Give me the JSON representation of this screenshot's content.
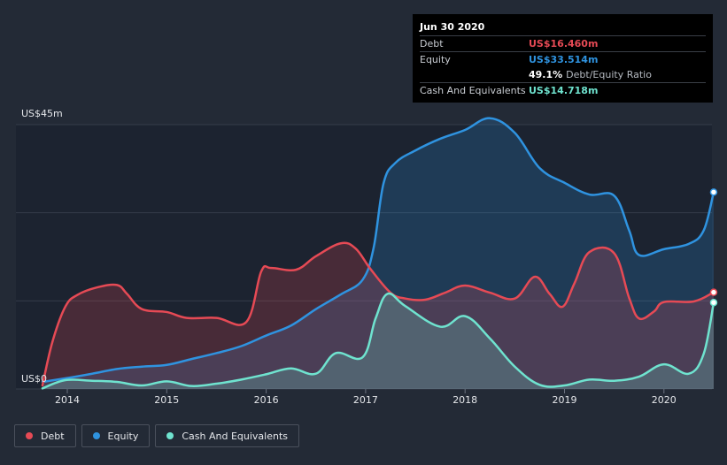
{
  "tooltip": {
    "date": "Jun 30 2020",
    "debt_label": "Debt",
    "debt_value": "US$16.460m",
    "equity_label": "Equity",
    "equity_value": "US$33.514m",
    "ratio_value": "49.1%",
    "ratio_label": "Debt/Equity Ratio",
    "cash_label": "Cash And Equivalents",
    "cash_value": "US$14.718m"
  },
  "legend": [
    {
      "label": "Debt",
      "color": "#e64a55"
    },
    {
      "label": "Equity",
      "color": "#2f93e0"
    },
    {
      "label": "Cash And Equivalents",
      "color": "#6fe3cf"
    }
  ],
  "chart_data": {
    "type": "area",
    "y_top_label": "US$45m",
    "y_bottom_label": "US$0",
    "ylim": [
      0,
      45
    ],
    "xlim": [
      2013.7,
      2020.5
    ],
    "x_ticks": [
      2014,
      2015,
      2016,
      2017,
      2018,
      2019,
      2020
    ],
    "x_tick_labels": [
      "2014",
      "2015",
      "2016",
      "2017",
      "2018",
      "2019",
      "2020"
    ],
    "grid": true,
    "series": [
      {
        "name": "Debt",
        "color": "#e64a55",
        "points": [
          [
            2013.75,
            0.6
          ],
          [
            2013.85,
            8
          ],
          [
            2013.98,
            14
          ],
          [
            2014.1,
            16
          ],
          [
            2014.3,
            17.3
          ],
          [
            2014.5,
            17.7
          ],
          [
            2014.6,
            16.2
          ],
          [
            2014.75,
            13.6
          ],
          [
            2015.0,
            13.1
          ],
          [
            2015.2,
            12.1
          ],
          [
            2015.5,
            12.1
          ],
          [
            2015.8,
            11.4
          ],
          [
            2015.95,
            20
          ],
          [
            2016.05,
            20.6
          ],
          [
            2016.3,
            20.3
          ],
          [
            2016.5,
            22.6
          ],
          [
            2016.75,
            24.8
          ],
          [
            2016.9,
            23.9
          ],
          [
            2017.05,
            20.4
          ],
          [
            2017.25,
            16.4
          ],
          [
            2017.4,
            15.4
          ],
          [
            2017.6,
            15.2
          ],
          [
            2017.8,
            16.4
          ],
          [
            2018.0,
            17.6
          ],
          [
            2018.25,
            16.4
          ],
          [
            2018.5,
            15.4
          ],
          [
            2018.7,
            19.1
          ],
          [
            2018.85,
            16.2
          ],
          [
            2018.98,
            14
          ],
          [
            2019.1,
            18
          ],
          [
            2019.25,
            23.3
          ],
          [
            2019.5,
            23.1
          ],
          [
            2019.65,
            15.5
          ],
          [
            2019.75,
            12
          ],
          [
            2019.9,
            13.2
          ],
          [
            2020.0,
            14.8
          ],
          [
            2020.3,
            14.9
          ],
          [
            2020.5,
            16.46
          ]
        ]
      },
      {
        "name": "Equity",
        "color": "#2f93e0",
        "points": [
          [
            2013.75,
            1.2
          ],
          [
            2013.98,
            1.8
          ],
          [
            2014.25,
            2.6
          ],
          [
            2014.5,
            3.4
          ],
          [
            2014.75,
            3.8
          ],
          [
            2015.0,
            4.1
          ],
          [
            2015.25,
            5.1
          ],
          [
            2015.5,
            6.1
          ],
          [
            2015.75,
            7.3
          ],
          [
            2016.0,
            9.1
          ],
          [
            2016.25,
            10.8
          ],
          [
            2016.5,
            13.6
          ],
          [
            2016.75,
            16.1
          ],
          [
            2016.97,
            18.6
          ],
          [
            2017.08,
            24
          ],
          [
            2017.18,
            35
          ],
          [
            2017.3,
            38.5
          ],
          [
            2017.5,
            40.6
          ],
          [
            2017.75,
            42.6
          ],
          [
            2018.0,
            44.1
          ],
          [
            2018.25,
            46.1
          ],
          [
            2018.5,
            43.6
          ],
          [
            2018.75,
            37.6
          ],
          [
            2019.0,
            35.1
          ],
          [
            2019.25,
            33.1
          ],
          [
            2019.5,
            32.9
          ],
          [
            2019.65,
            27
          ],
          [
            2019.75,
            22.8
          ],
          [
            2020.0,
            23.8
          ],
          [
            2020.25,
            24.7
          ],
          [
            2020.4,
            27
          ],
          [
            2020.5,
            33.514
          ]
        ]
      },
      {
        "name": "Cash And Equivalents",
        "color": "#6fe3cf",
        "points": [
          [
            2013.75,
            0.1
          ],
          [
            2013.98,
            1.5
          ],
          [
            2014.25,
            1.4
          ],
          [
            2014.5,
            1.2
          ],
          [
            2014.75,
            0.6
          ],
          [
            2015.0,
            1.3
          ],
          [
            2015.25,
            0.5
          ],
          [
            2015.5,
            0.9
          ],
          [
            2015.75,
            1.6
          ],
          [
            2016.0,
            2.5
          ],
          [
            2016.25,
            3.5
          ],
          [
            2016.5,
            2.6
          ],
          [
            2016.7,
            6.1
          ],
          [
            2016.97,
            5.4
          ],
          [
            2017.1,
            12
          ],
          [
            2017.22,
            16.2
          ],
          [
            2017.4,
            14.1
          ],
          [
            2017.75,
            10.6
          ],
          [
            2018.0,
            12.4
          ],
          [
            2018.25,
            8.6
          ],
          [
            2018.5,
            3.8
          ],
          [
            2018.75,
            0.7
          ],
          [
            2019.0,
            0.6
          ],
          [
            2019.25,
            1.6
          ],
          [
            2019.5,
            1.4
          ],
          [
            2019.75,
            2.1
          ],
          [
            2020.0,
            4.2
          ],
          [
            2020.25,
            2.6
          ],
          [
            2020.4,
            6
          ],
          [
            2020.5,
            14.718
          ]
        ]
      }
    ]
  }
}
